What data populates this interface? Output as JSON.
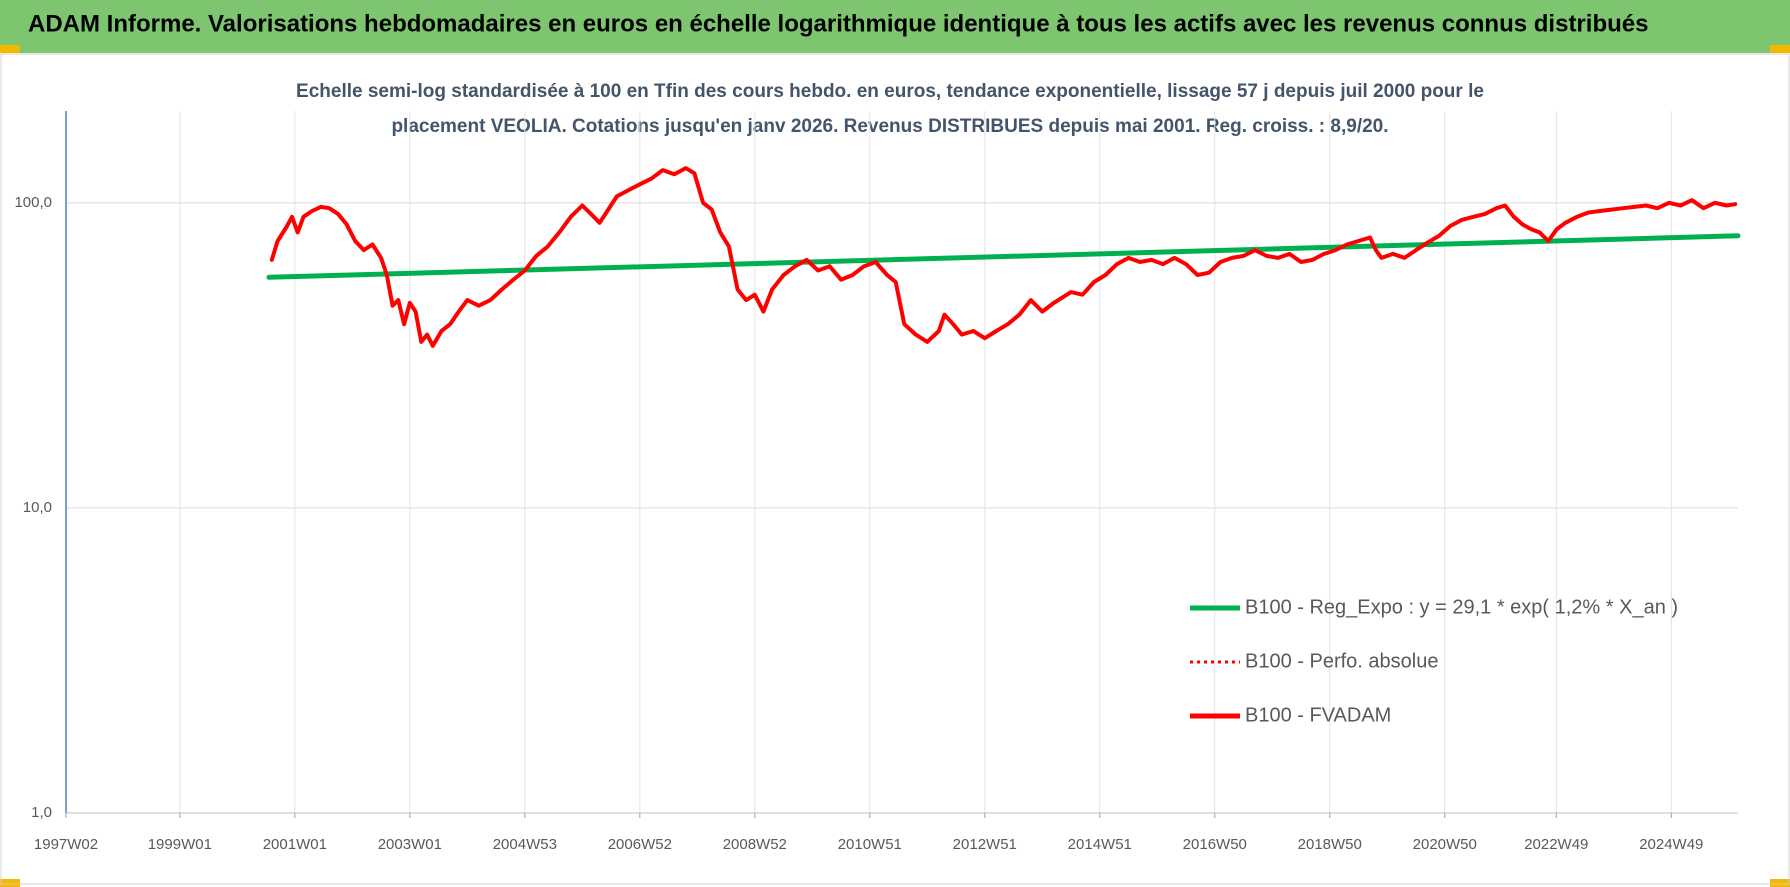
{
  "chart_data": {
    "type": "line",
    "title": "ADAM Informe. Valorisations hebdomadaires en euros en échelle logarithmique identique à tous les actifs avec les revenus connus distribués",
    "subtitle": [
      "Echelle semi-log standardisée à 100 en Tfin des cours hebdo. en euros, tendance exponentielle, lissage 57 j depuis juil 2000 pour le",
      "placement VEOLIA. Cotations jusqu'en janv 2026. Revenus DISTRIBUES depuis mai 2001. Reg. croiss. : 8,9/20."
    ],
    "log_scale": true,
    "grid": true,
    "xlim": [
      1997.02,
      2026.1
    ],
    "xticks": [
      {
        "value": 1997.02,
        "label": "1997W02"
      },
      {
        "value": 1999.0,
        "label": "1999W01"
      },
      {
        "value": 2001.0,
        "label": "2001W01"
      },
      {
        "value": 2003.0,
        "label": "2003W01"
      },
      {
        "value": 2005.0,
        "label": "2004W53"
      },
      {
        "value": 2007.0,
        "label": "2006W52"
      },
      {
        "value": 2009.0,
        "label": "2008W52"
      },
      {
        "value": 2011.0,
        "label": "2010W51"
      },
      {
        "value": 2013.0,
        "label": "2012W51"
      },
      {
        "value": 2015.0,
        "label": "2014W51"
      },
      {
        "value": 2017.0,
        "label": "2016W50"
      },
      {
        "value": 2019.0,
        "label": "2018W50"
      },
      {
        "value": 2021.0,
        "label": "2020W50"
      },
      {
        "value": 2022.94,
        "label": "2022W49"
      },
      {
        "value": 2024.94,
        "label": "2024W49"
      }
    ],
    "ylim": [
      1,
      200
    ],
    "yticks": [
      {
        "value": 1,
        "label": "1,0"
      },
      {
        "value": 10,
        "label": "10,0"
      },
      {
        "value": 100,
        "label": "100,0"
      }
    ],
    "x": [
      2000.6,
      2000.7,
      2000.85,
      2000.95,
      2001.05,
      2001.15,
      2001.3,
      2001.45,
      2001.6,
      2001.75,
      2001.9,
      2002.05,
      2002.2,
      2002.35,
      2002.5,
      2002.6,
      2002.7,
      2002.8,
      2002.9,
      2003.0,
      2003.1,
      2003.2,
      2003.3,
      2003.4,
      2003.55,
      2003.7,
      2003.85,
      2004.0,
      2004.2,
      2004.4,
      2004.6,
      2004.8,
      2005.0,
      2005.2,
      2005.4,
      2005.6,
      2005.8,
      2006.0,
      2006.15,
      2006.3,
      2006.45,
      2006.6,
      2006.8,
      2007.0,
      2007.2,
      2007.4,
      2007.6,
      2007.8,
      2007.95,
      2008.1,
      2008.25,
      2008.4,
      2008.55,
      2008.7,
      2008.85,
      2009.0,
      2009.15,
      2009.3,
      2009.5,
      2009.7,
      2009.9,
      2010.1,
      2010.3,
      2010.5,
      2010.7,
      2010.9,
      2011.1,
      2011.3,
      2011.45,
      2011.6,
      2011.8,
      2012.0,
      2012.2,
      2012.3,
      2012.45,
      2012.6,
      2012.8,
      2013.0,
      2013.2,
      2013.4,
      2013.6,
      2013.8,
      2014.0,
      2014.2,
      2014.5,
      2014.7,
      2014.9,
      2015.1,
      2015.3,
      2015.5,
      2015.7,
      2015.9,
      2016.1,
      2016.3,
      2016.5,
      2016.7,
      2016.9,
      2017.1,
      2017.3,
      2017.5,
      2017.7,
      2017.9,
      2018.1,
      2018.3,
      2018.5,
      2018.7,
      2018.9,
      2019.1,
      2019.3,
      2019.5,
      2019.7,
      2019.8,
      2019.9,
      2020.1,
      2020.3,
      2020.5,
      2020.7,
      2020.9,
      2021.1,
      2021.3,
      2021.5,
      2021.7,
      2021.9,
      2022.05,
      2022.2,
      2022.35,
      2022.5,
      2022.65,
      2022.8,
      2022.95,
      2023.1,
      2023.3,
      2023.5,
      2023.7,
      2023.9,
      2024.1,
      2024.3,
      2024.5,
      2024.7,
      2024.9,
      2025.1,
      2025.3,
      2025.5,
      2025.7,
      2025.9,
      2026.05
    ],
    "series": [
      {
        "name": "B100 - Reg_Expo : y = 29,1 * exp( 1,2% *  X_an )",
        "color": "#00b050",
        "style": "solid",
        "x": [
          2000.55,
          2026.1
        ],
        "values": [
          57,
          78
        ]
      },
      {
        "name": "B100 - Perfo. absolue",
        "color": "#ff0000",
        "style": "dotted",
        "values": [
          65,
          75,
          83,
          90,
          80,
          90,
          94,
          97,
          96,
          92,
          85,
          75,
          70,
          73,
          66,
          58,
          46,
          48,
          40,
          47,
          44,
          35,
          37,
          34,
          38,
          40,
          44,
          48,
          46,
          48,
          52,
          56,
          60,
          67,
          72,
          80,
          90,
          98,
          92,
          86,
          95,
          105,
          110,
          115,
          120,
          128,
          124,
          130,
          125,
          100,
          95,
          80,
          72,
          52,
          48,
          50,
          44,
          52,
          58,
          62,
          65,
          60,
          62,
          56,
          58,
          62,
          64,
          58,
          55,
          40,
          37,
          35,
          38,
          43,
          40,
          37,
          38,
          36,
          38,
          40,
          43,
          48,
          44,
          47,
          51,
          50,
          55,
          58,
          63,
          66,
          64,
          65,
          63,
          66,
          63,
          58,
          59,
          64,
          66,
          67,
          70,
          67,
          66,
          68,
          64,
          65,
          68,
          70,
          73,
          75,
          77,
          70,
          66,
          68,
          66,
          70,
          74,
          78,
          84,
          88,
          90,
          92,
          96,
          98,
          90,
          85,
          82,
          80,
          75,
          82,
          86,
          90,
          93,
          94,
          95,
          96,
          97,
          98,
          96,
          100,
          98,
          102,
          96,
          100,
          98,
          99
        ]
      },
      {
        "name": "B100 - FVADAM",
        "color": "#ff0000",
        "style": "solid",
        "values": [
          65,
          75,
          83,
          90,
          80,
          90,
          94,
          97,
          96,
          92,
          85,
          75,
          70,
          73,
          66,
          58,
          46,
          48,
          40,
          47,
          44,
          35,
          37,
          34,
          38,
          40,
          44,
          48,
          46,
          48,
          52,
          56,
          60,
          67,
          72,
          80,
          90,
          98,
          92,
          86,
          95,
          105,
          110,
          115,
          120,
          128,
          124,
          130,
          125,
          100,
          95,
          80,
          72,
          52,
          48,
          50,
          44,
          52,
          58,
          62,
          65,
          60,
          62,
          56,
          58,
          62,
          64,
          58,
          55,
          40,
          37,
          35,
          38,
          43,
          40,
          37,
          38,
          36,
          38,
          40,
          43,
          48,
          44,
          47,
          51,
          50,
          55,
          58,
          63,
          66,
          64,
          65,
          63,
          66,
          63,
          58,
          59,
          64,
          66,
          67,
          70,
          67,
          66,
          68,
          64,
          65,
          68,
          70,
          73,
          75,
          77,
          70,
          66,
          68,
          66,
          70,
          74,
          78,
          84,
          88,
          90,
          92,
          96,
          98,
          90,
          85,
          82,
          80,
          75,
          82,
          86,
          90,
          93,
          94,
          95,
          96,
          97,
          98,
          96,
          100,
          98,
          102,
          96,
          100,
          98,
          99
        ]
      }
    ]
  }
}
